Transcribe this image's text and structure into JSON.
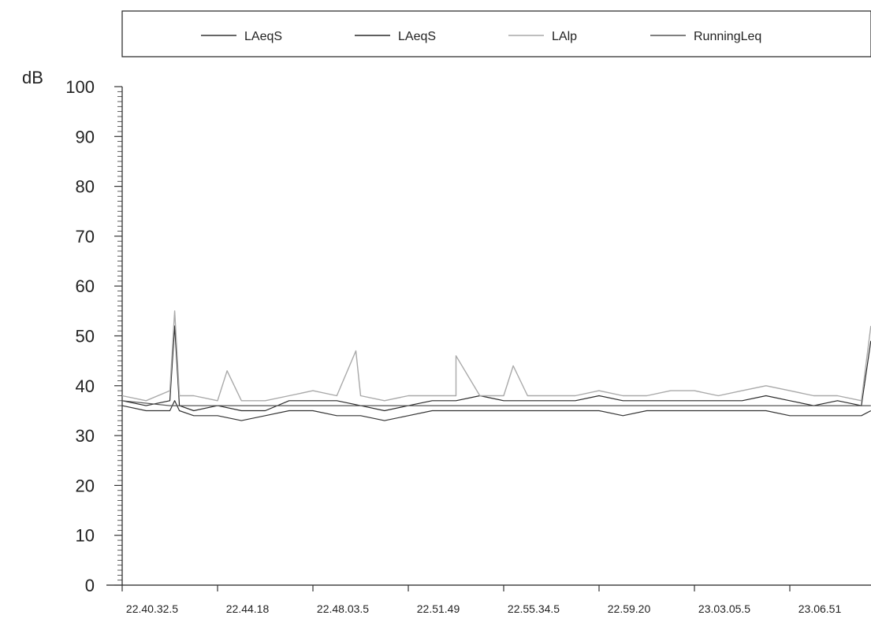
{
  "chart_data": {
    "type": "line",
    "title": "",
    "xlabel": "",
    "ylabel": "dB",
    "ylim": [
      0,
      100
    ],
    "yticks": [
      0,
      10,
      20,
      30,
      40,
      50,
      60,
      70,
      80,
      90,
      100
    ],
    "x_tick_labels": [
      "22.40.32.5",
      "22.44.18",
      "22.48.03.5",
      "22.51.49",
      "22.55.34.5",
      "22.59.20",
      "23.03.05.5",
      "23.06.51"
    ],
    "x_range_ticks": [
      0,
      7.85
    ],
    "legend": [
      "LAeqS",
      "LAeqS",
      "LAlp",
      "RunningLeq"
    ],
    "legend_position": "top",
    "grid": false,
    "colors": {
      "LAeqS_1": "#333333",
      "LAeqS_2": "#2a2a2a",
      "LAlp": "#a9a9a9",
      "RunningLeq": "#555555"
    },
    "series": [
      {
        "name": "LAeqS",
        "x": [
          0,
          0.25,
          0.5,
          0.55,
          0.6,
          0.75,
          1,
          1.25,
          1.5,
          1.75,
          2,
          2.25,
          2.5,
          2.75,
          3,
          3.25,
          3.5,
          3.75,
          4,
          4.25,
          4.5,
          4.75,
          5,
          5.25,
          5.5,
          5.75,
          6,
          6.25,
          6.5,
          6.75,
          7,
          7.25,
          7.5,
          7.75,
          7.85
        ],
        "values": [
          36,
          35,
          35,
          37,
          35,
          34,
          34,
          33,
          34,
          35,
          35,
          34,
          34,
          33,
          34,
          35,
          35,
          35,
          35,
          35,
          35,
          35,
          35,
          34,
          35,
          35,
          35,
          35,
          35,
          35,
          34,
          34,
          34,
          34,
          35
        ]
      },
      {
        "name": "LAeqS",
        "x": [
          0,
          0.25,
          0.5,
          0.55,
          0.6,
          0.75,
          1,
          1.25,
          1.5,
          1.75,
          2,
          2.25,
          2.5,
          2.75,
          3,
          3.25,
          3.5,
          3.75,
          4,
          4.25,
          4.5,
          4.75,
          5,
          5.25,
          5.5,
          5.75,
          6,
          6.25,
          6.5,
          6.75,
          7,
          7.25,
          7.5,
          7.75,
          7.85
        ],
        "values": [
          37,
          36,
          37,
          52,
          36,
          35,
          36,
          35,
          35,
          37,
          37,
          37,
          36,
          35,
          36,
          37,
          37,
          38,
          37,
          37,
          37,
          37,
          38,
          37,
          37,
          37,
          37,
          37,
          37,
          38,
          37,
          36,
          37,
          36,
          49
        ]
      },
      {
        "name": "LAlp",
        "x": [
          0,
          0.25,
          0.5,
          0.55,
          0.6,
          0.75,
          1,
          1.1,
          1.25,
          1.5,
          1.75,
          2,
          2.25,
          2.45,
          2.5,
          2.75,
          3,
          3.25,
          3.5,
          3.5,
          3.75,
          4,
          4.1,
          4.25,
          4.5,
          4.75,
          5,
          5.25,
          5.5,
          5.75,
          6,
          6.25,
          6.5,
          6.75,
          7,
          7.25,
          7.5,
          7.75,
          7.85
        ],
        "values": [
          38,
          37,
          39,
          55,
          38,
          38,
          37,
          43,
          37,
          37,
          38,
          39,
          38,
          47,
          38,
          37,
          38,
          38,
          38,
          46,
          38,
          38,
          44,
          38,
          38,
          38,
          39,
          38,
          38,
          39,
          39,
          38,
          39,
          40,
          39,
          38,
          38,
          37,
          52
        ]
      },
      {
        "name": "RunningLeq",
        "x": [
          0,
          0.5,
          1,
          1.5,
          2,
          2.5,
          3,
          3.5,
          4,
          4.5,
          5,
          5.5,
          6,
          6.5,
          7,
          7.5,
          7.85
        ],
        "values": [
          37,
          36,
          36,
          36,
          36,
          36,
          36,
          36,
          36,
          36,
          36,
          36,
          36,
          36,
          36,
          36,
          36
        ]
      }
    ]
  }
}
